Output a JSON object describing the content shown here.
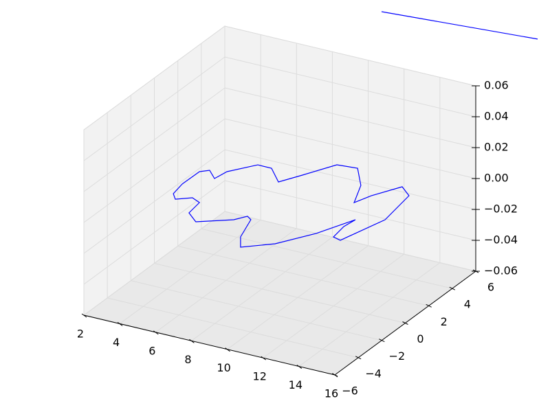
{
  "chart_data": {
    "type": "line3d",
    "series": [
      {
        "color": "#0000ff",
        "x": [
          3.94,
          3.96,
          4.31,
          4.99,
          5.12,
          6.03,
          6.8,
          7.88,
          8.5,
          9.36,
          10.43,
          11.55,
          12.25,
          12.58,
          13.37,
          14.17,
          14.54,
          13.83,
          13.35,
          13.19,
          13.29,
          12.42,
          11.28,
          10.02,
          9.43,
          8.88,
          8.54,
          8.16,
          6.68,
          5.88,
          5.73,
          5.16,
          4.52,
          4.12,
          3.94
        ],
        "y": [
          -0.59,
          0.85,
          1.18,
          0.56,
          1.42,
          2.66,
          2.65,
          1.59,
          2.69,
          4.31,
          4.44,
          3.01,
          1.37,
          2.32,
          3.75,
          3.11,
          0.51,
          -2.22,
          -2.07,
          -0.95,
          -0.11,
          -2.12,
          -3.88,
          -4.9,
          -4.0,
          -2.28,
          -2.05,
          -2.64,
          -3.61,
          -2.97,
          -1.85,
          -1.58,
          -2.06,
          -1.62,
          -0.59
        ],
        "z": [
          0,
          0,
          0,
          0,
          0,
          0,
          0,
          0,
          0,
          0,
          0,
          0,
          0,
          0,
          0,
          0,
          0,
          0,
          0,
          0,
          0,
          0,
          0,
          0,
          0,
          0,
          0,
          0,
          0,
          0,
          0,
          0,
          0,
          0,
          0
        ]
      },
      {
        "color": "#0000ff",
        "x": [
          2.47,
          10.62
        ],
        "y": [
          18.63,
          19.48
        ],
        "z": [
          0,
          0
        ]
      }
    ],
    "xlim": [
      2,
      16
    ],
    "xticks": [
      2,
      4,
      6,
      8,
      10,
      12,
      14,
      16
    ],
    "ylim": [
      -6,
      6
    ],
    "yticks": [
      {
        "value": -6,
        "label": "−6"
      },
      {
        "value": -4,
        "label": "−4"
      },
      {
        "value": -2,
        "label": "−2"
      },
      0,
      2,
      4,
      6
    ],
    "zlim": [
      -0.06,
      0.06
    ],
    "zticks": [
      {
        "value": -0.06,
        "label": "−0.06"
      },
      {
        "value": -0.04,
        "label": "−0.04"
      },
      {
        "value": -0.02,
        "label": "−0.02"
      },
      {
        "value": 0,
        "label": "0.00"
      },
      0.02,
      0.04,
      0.06
    ],
    "grid": true
  }
}
